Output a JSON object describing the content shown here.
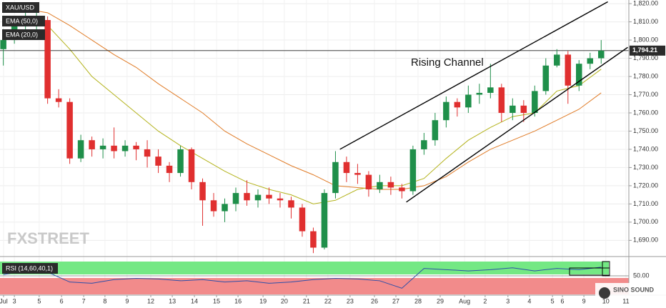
{
  "chart_data": {
    "type": "candlestick",
    "symbol": "XAU/USD",
    "watermark": "FXSTREET",
    "brand": "SINO SOUND",
    "up_color": "#1f8f4a",
    "down_color": "#e02f2f",
    "x": [
      -0.5,
      0,
      0.5,
      1,
      1.5,
      2,
      2.5,
      3,
      3.5,
      4,
      4.5,
      5,
      5.5,
      6,
      6.5,
      7,
      7.5,
      8,
      8.5,
      9,
      9.5,
      10,
      10.5,
      11,
      11.5,
      12,
      12.5,
      13,
      13.5,
      14,
      14.5,
      15,
      15.5,
      16,
      16.5,
      17,
      17.5,
      18,
      18.5,
      19,
      19.5,
      20,
      20.5,
      21,
      21.5,
      22,
      22.5,
      23,
      23.5,
      24,
      24.5,
      25,
      25.5,
      26,
      26.5
    ],
    "open": [
      1795,
      1800,
      1808,
      1810,
      1811,
      1768,
      1766,
      1735,
      1745,
      1740,
      1742,
      1739,
      1742,
      1740,
      1736,
      1731,
      1727,
      1740,
      1722,
      1712,
      1706,
      1710,
      1716,
      1712,
      1715,
      1713,
      1712,
      1708,
      1695,
      1686,
      1716,
      1733,
      1727,
      1726,
      1718,
      1722,
      1719,
      1717,
      1740,
      1745,
      1756,
      1766,
      1763,
      1770,
      1771,
      1774,
      1760,
      1764,
      1760,
      1772,
      1786,
      1792,
      1775,
      1787,
      1790
    ],
    "high": [
      1806,
      1812,
      1815,
      1816,
      1813,
      1773,
      1768,
      1748,
      1747,
      1746,
      1752,
      1745,
      1744,
      1745,
      1740,
      1733,
      1742,
      1741,
      1724,
      1716,
      1713,
      1719,
      1723,
      1718,
      1719,
      1716,
      1714,
      1710,
      1697,
      1718,
      1739,
      1736,
      1732,
      1728,
      1726,
      1725,
      1721,
      1742,
      1749,
      1760,
      1769,
      1768,
      1775,
      1776,
      1787,
      1776,
      1768,
      1767,
      1775,
      1790,
      1795,
      1794,
      1789,
      1793,
      1800
    ],
    "low": [
      1786,
      1798,
      1803,
      1805,
      1765,
      1763,
      1732,
      1733,
      1736,
      1735,
      1735,
      1736,
      1734,
      1730,
      1727,
      1722,
      1725,
      1718,
      1698,
      1703,
      1700,
      1706,
      1709,
      1708,
      1710,
      1708,
      1702,
      1692,
      1683,
      1685,
      1713,
      1722,
      1721,
      1714,
      1716,
      1715,
      1713,
      1715,
      1737,
      1742,
      1752,
      1758,
      1760,
      1765,
      1768,
      1755,
      1756,
      1755,
      1758,
      1770,
      1785,
      1765,
      1772,
      1784,
      1787
    ],
    "close": [
      1800,
      1808,
      1810,
      1812,
      1768,
      1766,
      1735,
      1745,
      1740,
      1742,
      1739,
      1742,
      1740,
      1736,
      1731,
      1727,
      1740,
      1722,
      1712,
      1706,
      1710,
      1716,
      1712,
      1715,
      1713,
      1712,
      1708,
      1695,
      1686,
      1716,
      1733,
      1727,
      1726,
      1718,
      1722,
      1719,
      1717,
      1740,
      1745,
      1756,
      1766,
      1763,
      1770,
      1771,
      1774,
      1760,
      1764,
      1760,
      1772,
      1786,
      1792,
      1775,
      1787,
      1790,
      1794.21
    ],
    "overlays": [
      {
        "name": "EMA (50,0)",
        "color": "#e07b26",
        "x": [
          -0.5,
          0.5,
          1.5,
          2.5,
          3.5,
          4.5,
          5.5,
          6.5,
          7.5,
          8.5,
          9.5,
          10.5,
          11.5,
          12.5,
          13.5,
          14.5,
          15.5,
          16.5,
          17.5,
          18.5,
          19.5,
          20.5,
          21.5,
          22.5,
          23.5,
          24.5,
          25.5,
          26.5
        ],
        "values": [
          1818,
          1817,
          1815,
          1808,
          1800,
          1792,
          1785,
          1776,
          1768,
          1760,
          1750,
          1743,
          1737,
          1731,
          1726,
          1720,
          1719,
          1718,
          1718,
          1720,
          1725,
          1733,
          1740,
          1745,
          1750,
          1756,
          1762,
          1771
        ]
      },
      {
        "name": "EMA (20,0)",
        "color": "#b3b21a",
        "x": [
          -0.5,
          0.5,
          1.5,
          2.5,
          3.5,
          4.5,
          5.5,
          6.5,
          7.5,
          8.5,
          9.5,
          10.5,
          11.5,
          12.5,
          13.5,
          14.5,
          15.5,
          16.5,
          17.5,
          18.5,
          19.5,
          20.5,
          21.5,
          22.5,
          23.5,
          24.5,
          25.5,
          26.5
        ],
        "values": [
          1812,
          1811,
          1808,
          1795,
          1780,
          1770,
          1760,
          1750,
          1742,
          1735,
          1728,
          1722,
          1718,
          1715,
          1710,
          1712,
          1718,
          1720,
          1720,
          1724,
          1735,
          1745,
          1752,
          1758,
          1760,
          1772,
          1775,
          1784
        ]
      }
    ],
    "last_price": {
      "value": 1794.21,
      "label": "1,794.21"
    },
    "channel": {
      "label": "Rising Channel",
      "upper": {
        "x": [
          14.7,
          26.8
        ],
        "values": [
          1740,
          1821
        ]
      },
      "lower": {
        "x": [
          17.7,
          27.7
        ],
        "values": [
          1711,
          1796
        ]
      }
    },
    "xlim": [
      -0.65,
      27.75
    ],
    "xticks": [
      {
        "value": -0.49,
        "label": "Jul"
      },
      {
        "value": 0,
        "label": "3"
      },
      {
        "value": 1.12,
        "label": "5"
      },
      {
        "value": 2.13,
        "label": "6"
      },
      {
        "value": 3.13,
        "label": "7"
      },
      {
        "value": 4.09,
        "label": "8"
      },
      {
        "value": 5.09,
        "label": "9"
      },
      {
        "value": 6.16,
        "label": "12"
      },
      {
        "value": 7.13,
        "label": "13"
      },
      {
        "value": 8.13,
        "label": "14"
      },
      {
        "value": 9.13,
        "label": "15"
      },
      {
        "value": 10.1,
        "label": "16"
      },
      {
        "value": 11.23,
        "label": "19"
      },
      {
        "value": 12.19,
        "label": "20"
      },
      {
        "value": 13.19,
        "label": "21"
      },
      {
        "value": 14.16,
        "label": "22"
      },
      {
        "value": 15.16,
        "label": "23"
      },
      {
        "value": 16.26,
        "label": "26"
      },
      {
        "value": 17.23,
        "label": "27"
      },
      {
        "value": 18.23,
        "label": "28"
      },
      {
        "value": 19.23,
        "label": "29"
      },
      {
        "value": 20.33,
        "label": "Aug"
      },
      {
        "value": 21.26,
        "label": "2"
      },
      {
        "value": 22.29,
        "label": "3"
      },
      {
        "value": 23.26,
        "label": "4"
      },
      {
        "value": 24.3,
        "label": "5"
      },
      {
        "value": 24.75,
        "label": "6"
      },
      {
        "value": 25.72,
        "label": "9"
      },
      {
        "value": 26.71,
        "label": "10"
      },
      {
        "value": 27.62,
        "label": "11"
      }
    ],
    "ylim": [
      1681.5,
      1822
    ],
    "yticks": [
      {
        "value": 1820,
        "label": "1,820.00"
      },
      {
        "value": 1810,
        "label": "1,810.00"
      },
      {
        "value": 1800,
        "label": "1,800.00"
      },
      {
        "value": 1790,
        "label": "1,790.00"
      },
      {
        "value": 1780,
        "label": "1,780.00"
      },
      {
        "value": 1770,
        "label": "1,770.00"
      },
      {
        "value": 1760,
        "label": "1,760.00"
      },
      {
        "value": 1750,
        "label": "1,750.00"
      },
      {
        "value": 1740,
        "label": "1,740.00"
      },
      {
        "value": 1730,
        "label": "1,730.00"
      },
      {
        "value": 1720,
        "label": "1,720.00"
      },
      {
        "value": 1710,
        "label": "1,710.00"
      },
      {
        "value": 1700,
        "label": "1,700.00"
      },
      {
        "value": 1690,
        "label": "1,690.00"
      }
    ],
    "grid": true,
    "rsi": {
      "name": "RSI (14,60,40,1)",
      "color": "#2e4fa8",
      "x": [
        -0.5,
        0.5,
        1.5,
        2.5,
        3.5,
        4.5,
        5.5,
        6.5,
        7.5,
        8.5,
        9.5,
        10.5,
        11.5,
        12.5,
        13.5,
        14.5,
        15.5,
        16.5,
        17.5,
        18.5,
        19.5,
        20.5,
        21.5,
        22.5,
        23.5,
        24.5,
        25.5,
        26.5
      ],
      "values": [
        52,
        58,
        56,
        40,
        38,
        44,
        46,
        45,
        42,
        44,
        40,
        42,
        38,
        40,
        44,
        46,
        45,
        42,
        30,
        62,
        60,
        58,
        60,
        63,
        58,
        62,
        60,
        64
      ],
      "ylim": [
        20,
        80
      ],
      "yticks": [
        {
          "value": 50,
          "label": "50.00"
        }
      ]
    }
  }
}
